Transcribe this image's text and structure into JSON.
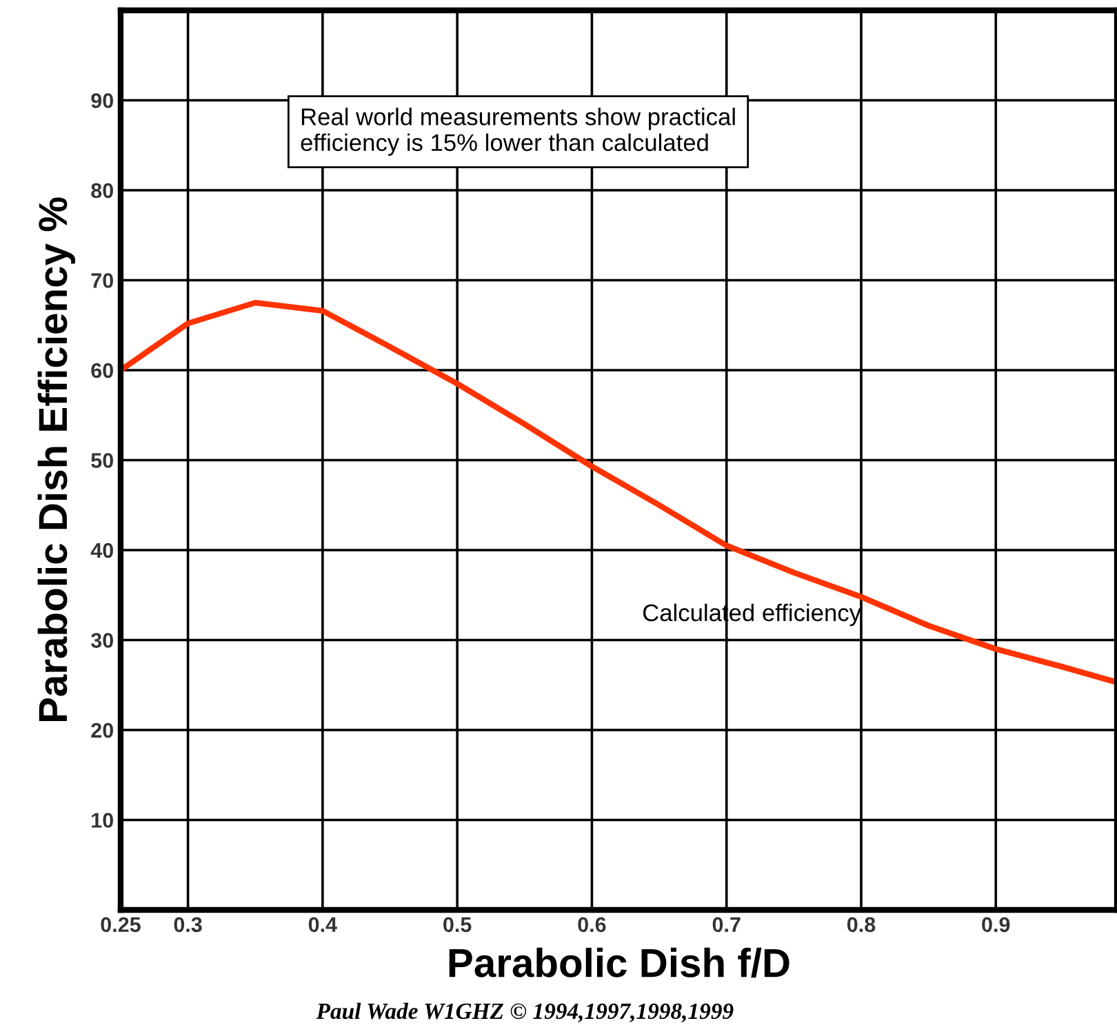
{
  "chart_data": {
    "type": "line",
    "xlabel": "Parabolic Dish f/D",
    "ylabel": "Parabolic Dish Efficiency %",
    "x": [
      0.25,
      0.3,
      0.35,
      0.4,
      0.45,
      0.5,
      0.55,
      0.6,
      0.65,
      0.7,
      0.75,
      0.8,
      0.85,
      0.9,
      0.95,
      0.99
    ],
    "series": [
      {
        "name": "Calculated efficiency",
        "color": "#ff3300",
        "values": [
          60,
          65.2,
          67.5,
          66.6,
          62.6,
          58.5,
          54,
          49.3,
          45,
          40.5,
          37.5,
          34.8,
          31.6,
          29,
          27,
          25.3
        ]
      }
    ],
    "xlim": [
      0.25,
      0.99
    ],
    "ylim": [
      0,
      100
    ],
    "xticks": [
      0.25,
      0.3,
      0.4,
      0.5,
      0.6,
      0.7,
      0.8,
      0.9
    ],
    "yticks": [
      10,
      20,
      30,
      40,
      50,
      60,
      70,
      80,
      90
    ],
    "grid": true,
    "legend": false,
    "marker": "none",
    "line_style": "solid",
    "annotations": [
      "Real world measurements show practical\nefficiency is 15% lower than calculated",
      "Paul Wade W1GHZ © 1994,1997,1998,1999"
    ]
  }
}
